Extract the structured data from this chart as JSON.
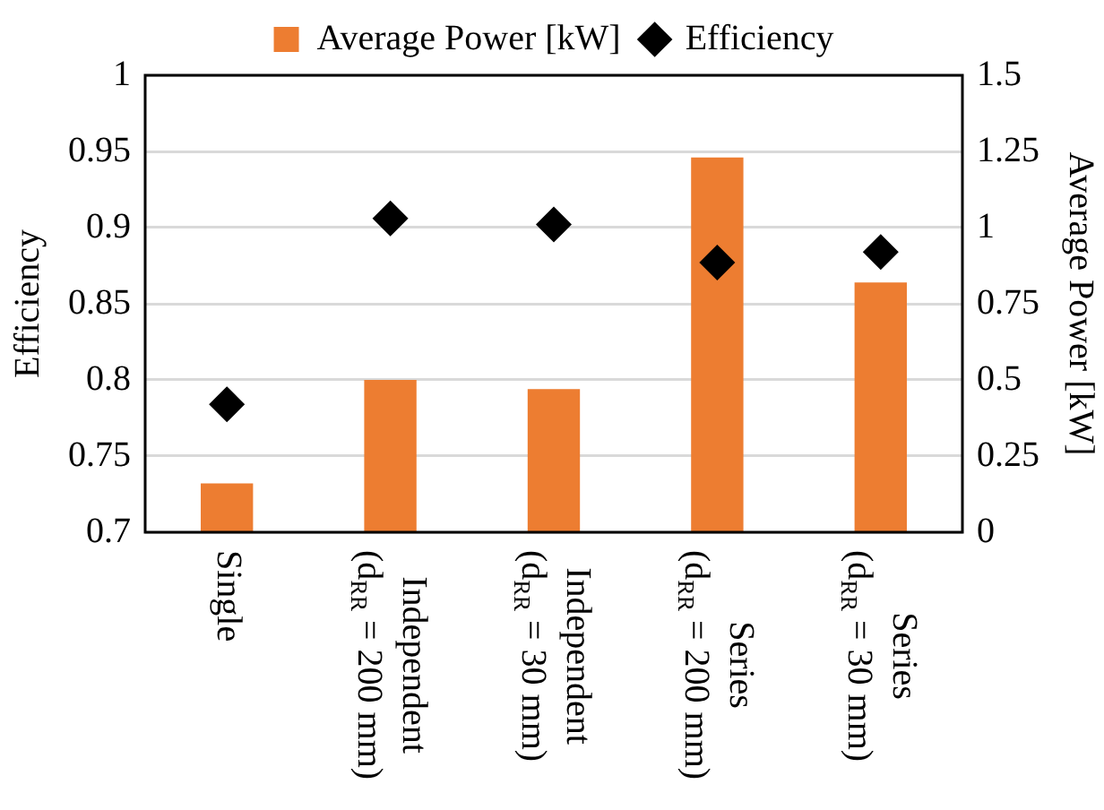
{
  "chart_data": {
    "type": "bar",
    "categories": [
      "Single",
      "Independent\n(d$_{RR}$ = 200 mm)",
      "Independent\n(d$_{RR}$ = 30 mm)",
      "Series\n(d$_{RR}$ = 200 mm)",
      "Series\n(d$_{RR}$ = 30 mm)"
    ],
    "series": [
      {
        "name": "Average Power [kW]",
        "axis": "y2",
        "color": "#ed7d31",
        "values": [
          0.16,
          0.5,
          0.47,
          1.23,
          0.82
        ]
      },
      {
        "name": "Efficiency",
        "type": "scatter",
        "color": "#000000",
        "values": [
          0.784,
          0.906,
          0.902,
          0.877,
          0.884
        ]
      }
    ],
    "ylabel": "Efficiency",
    "y2label": "Average Power [kW]",
    "ylim": [
      0.7,
      1
    ],
    "yticks": [
      0.7,
      0.75,
      0.8,
      0.85,
      0.9,
      0.95,
      1
    ],
    "y2lim": [
      0,
      1.5
    ],
    "y2ticks": [
      0,
      0.25,
      0.5,
      0.75,
      1,
      1.25,
      1.5
    ],
    "grid": "y",
    "legend": "top",
    "marker": "diamond"
  }
}
